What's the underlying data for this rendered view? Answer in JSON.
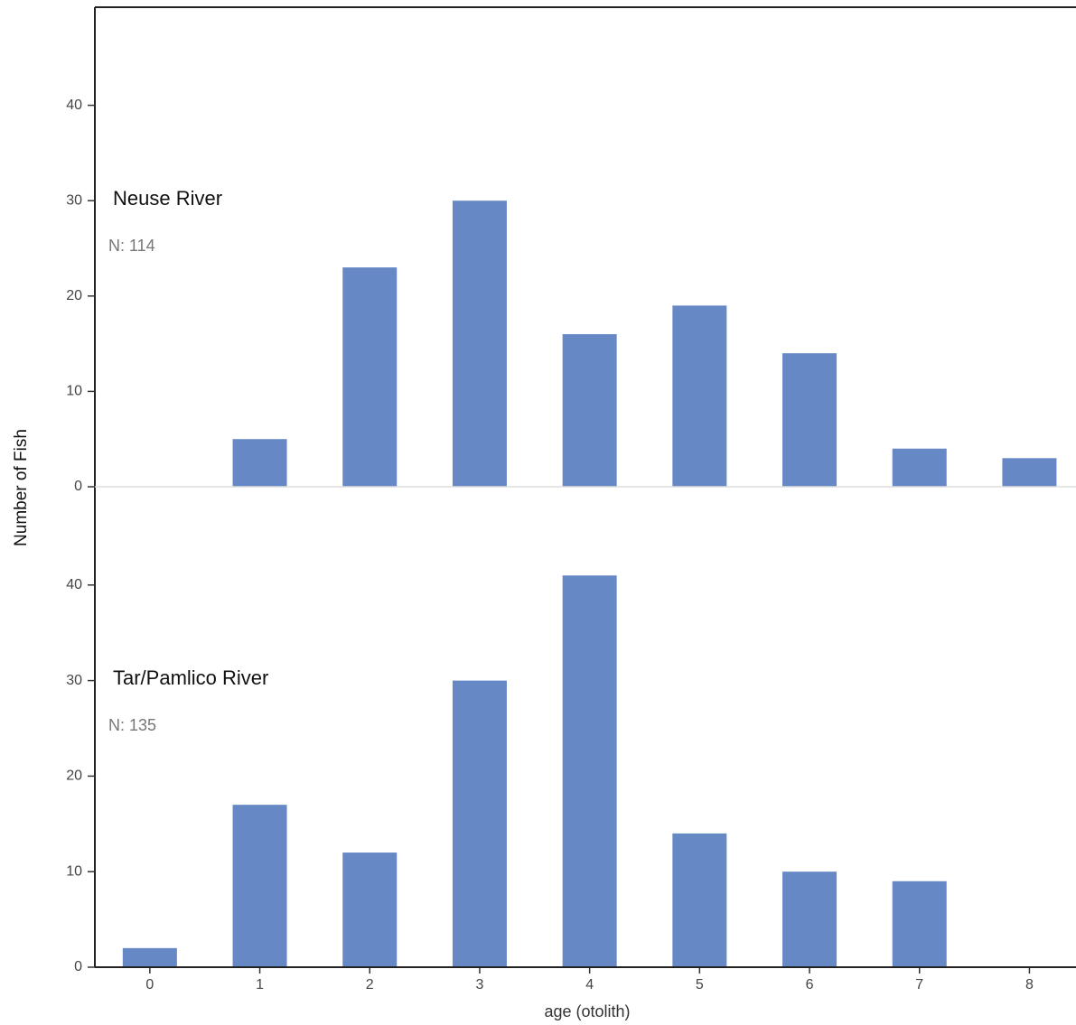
{
  "chart_data": [
    {
      "type": "bar",
      "title": "Neuse River",
      "subtitle": "N: 114",
      "y_label": "Number of Fish",
      "values": [
        0,
        5,
        23,
        30,
        16,
        19,
        14,
        4,
        3
      ],
      "color": "#6689c6",
      "ylim": [
        0,
        50
      ],
      "yticks": [
        0,
        10,
        20,
        30,
        40
      ]
    },
    {
      "type": "bar",
      "title": "Tar/Pamlico River",
      "subtitle": "N: 135",
      "x_label": "age (otolith)",
      "categories": [
        "0",
        "1",
        "2",
        "3",
        "4",
        "5",
        "6",
        "7",
        "8"
      ],
      "values": [
        2,
        17,
        12,
        30,
        41,
        14,
        10,
        9,
        0
      ],
      "color": "#6689c6",
      "ylim": [
        0,
        50
      ],
      "yticks": [
        0,
        10,
        20,
        30,
        40
      ]
    }
  ]
}
